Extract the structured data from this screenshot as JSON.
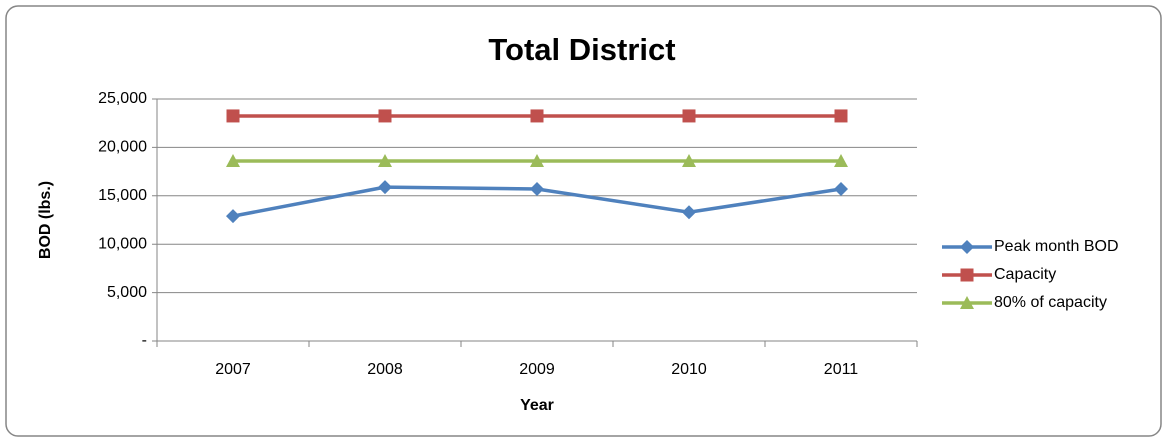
{
  "chart_data": {
    "type": "line",
    "title": "Total District",
    "x_label": "Year",
    "y_label": "BOD (lbs.)",
    "categories": [
      "2007",
      "2008",
      "2009",
      "2010",
      "2011"
    ],
    "series": [
      {
        "name": "Peak month BOD",
        "color": "#4f81bd",
        "marker": "diamond",
        "values": [
          12900,
          15900,
          15700,
          13300,
          15700
        ]
      },
      {
        "name": "Capacity",
        "color": "#c0504d",
        "marker": "square",
        "values": [
          23250,
          23250,
          23250,
          23250,
          23250
        ]
      },
      {
        "name": "80% of capacity",
        "color": "#9bbb59",
        "marker": "triangle",
        "values": [
          18600,
          18600,
          18600,
          18600,
          18600
        ]
      }
    ],
    "ylim": [
      0,
      25000
    ],
    "yticks": [
      {
        "value": 0,
        "label": "-"
      },
      {
        "value": 5000,
        "label": "5,000"
      },
      {
        "value": 10000,
        "label": "10,000"
      },
      {
        "value": 15000,
        "label": "15,000"
      },
      {
        "value": 20000,
        "label": "20,000"
      },
      {
        "value": 25000,
        "label": "25,000"
      }
    ],
    "grid": true,
    "legend": "right"
  }
}
